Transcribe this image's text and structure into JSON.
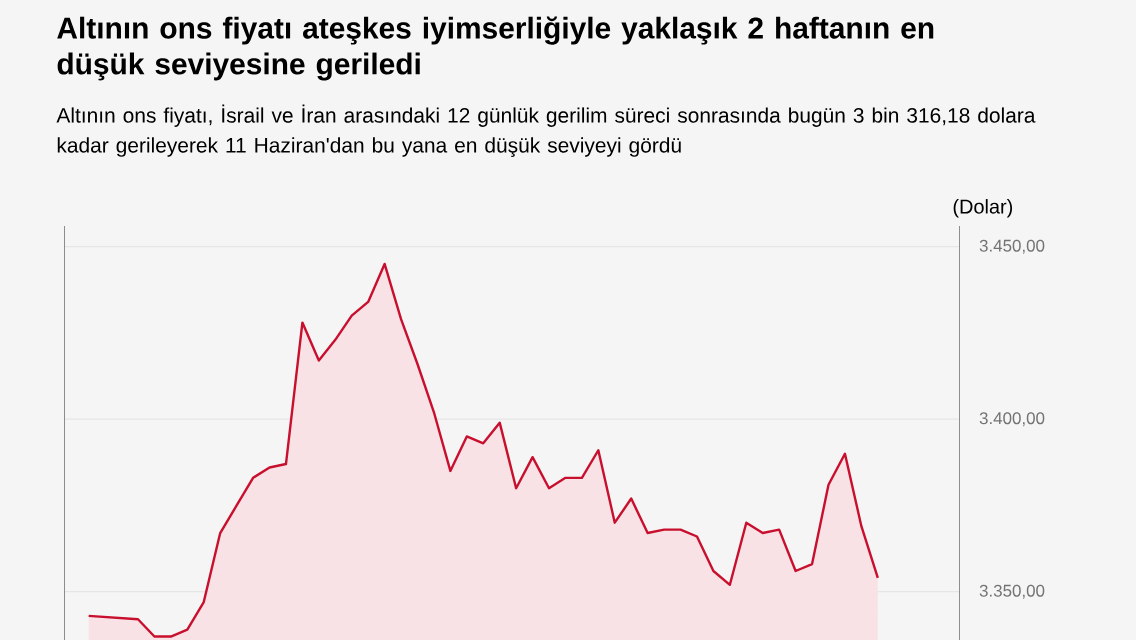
{
  "chart_data": {
    "type": "area",
    "title": "Altının ons fiyatı ateşkes iyimserliğiyle yaklaşık 2 haftanın en düşük seviyesine geriledi",
    "subtitle": "Altının ons fiyatı, İsrail ve İran arasındaki 12 günlük gerilim süreci sonrasında bugün 3 bin 316,18 dolara kadar gerileyerek 11 Haziran'dan bu yana en düşük seviyeyi gördü",
    "ylabel": "(Dolar)",
    "categories": [
      null,
      null,
      null,
      null,
      null,
      null,
      null,
      null,
      null,
      null,
      null,
      null,
      null,
      null,
      null,
      null,
      null,
      null,
      null,
      null,
      null,
      null,
      null,
      null,
      null,
      null,
      null,
      null,
      null,
      null,
      null,
      null,
      null,
      null,
      null,
      null,
      null,
      null,
      null,
      null,
      null,
      null,
      null,
      null,
      null,
      null,
      null,
      null,
      null,
      null,
      null
    ],
    "values": [
      null,
      3343,
      null,
      null,
      3342,
      3337,
      3337,
      3339,
      3347,
      3367,
      3375,
      3383,
      3386,
      3387,
      3428,
      3417,
      3423,
      3430,
      3434,
      3445,
      3429,
      3416,
      3402,
      3385,
      3395,
      3393,
      3399,
      3380,
      3389,
      3380,
      3383,
      3383,
      3391,
      3370,
      3377,
      3367,
      3368,
      3368,
      3366,
      3356,
      3352,
      3370,
      3367,
      3368,
      3356,
      3358,
      3381,
      3390,
      3369,
      3354,
      null
    ],
    "color": "#c8102e",
    "ylim": [
      3336,
      3456
    ],
    "yticks": [
      {
        "value": 3350,
        "label": "3.350,00"
      },
      {
        "value": 3400,
        "label": "3.400,00"
      },
      {
        "value": 3450,
        "label": "3.450,00"
      }
    ],
    "grid": "y",
    "tick_labels": "y"
  }
}
